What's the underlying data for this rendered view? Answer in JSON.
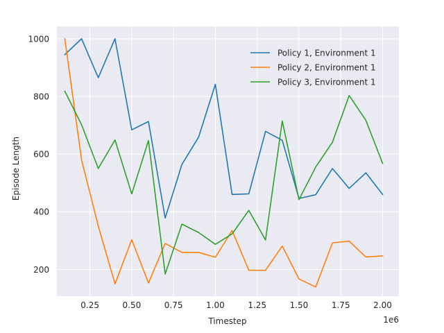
{
  "chart_data": {
    "type": "line",
    "title": "",
    "xlabel": "Timestep",
    "ylabel": "Episode Length",
    "x_offset_label": "1e6",
    "xlim": [
      0.0525,
      2.0975
    ],
    "ylim": [
      107,
      1043
    ],
    "xticks": [
      0.25,
      0.5,
      0.75,
      1.0,
      1.25,
      1.5,
      1.75,
      2.0
    ],
    "xtick_labels": [
      "0.25",
      "0.50",
      "0.75",
      "1.00",
      "1.25",
      "1.50",
      "1.75",
      "2.00"
    ],
    "yticks": [
      200,
      400,
      600,
      800,
      1000
    ],
    "ytick_labels": [
      "200",
      "400",
      "600",
      "800",
      "1000"
    ],
    "grid": true,
    "legend_position": "top-right",
    "x": [
      0.1,
      0.2,
      0.3,
      0.4,
      0.5,
      0.6,
      0.7,
      0.8,
      0.9,
      1.0,
      1.1,
      1.2,
      1.3,
      1.4,
      1.5,
      1.6,
      1.7,
      1.8,
      1.9,
      2.0
    ],
    "series": [
      {
        "name": "Policy 1, Environment 1",
        "color": "#1f77b4",
        "values": [
          945,
          1000,
          865,
          1000,
          684,
          713,
          378,
          564,
          659,
          842,
          460,
          462,
          679,
          648,
          446,
          459,
          550,
          481,
          535,
          460
        ]
      },
      {
        "name": "Policy 2, Environment 1",
        "color": "#ff7f0e",
        "values": [
          1000,
          580,
          350,
          150,
          303,
          153,
          290,
          259,
          259,
          242,
          335,
          197,
          197,
          281,
          167,
          139,
          292,
          298,
          243,
          247
        ]
      },
      {
        "name": "Policy 3, Environment 1",
        "color": "#2ca02c",
        "values": [
          818,
          702,
          550,
          649,
          462,
          647,
          184,
          357,
          328,
          287,
          323,
          405,
          302,
          715,
          442,
          555,
          641,
          803,
          717,
          568
        ]
      }
    ]
  },
  "style": {
    "plot_background": "#eaeaf2",
    "grid_color": "#ffffff"
  }
}
